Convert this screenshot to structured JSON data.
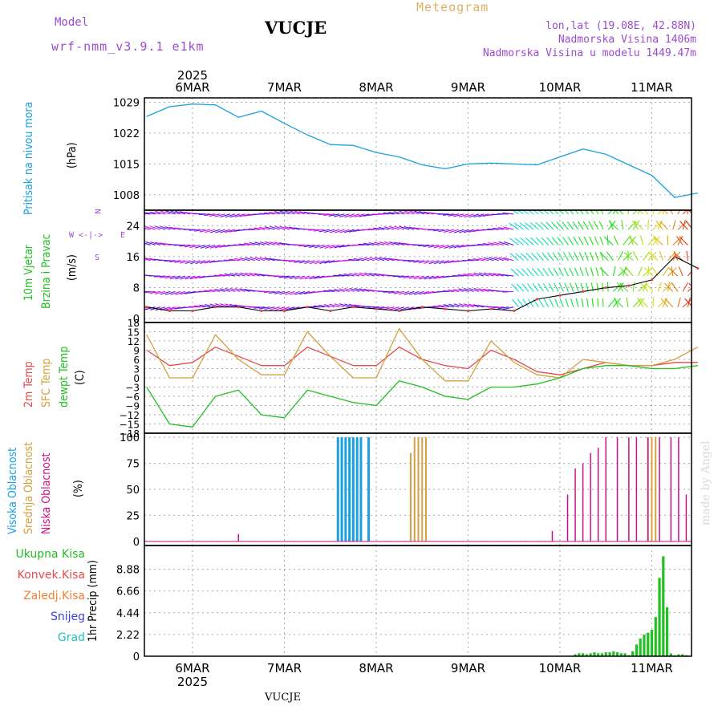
{
  "header": {
    "model_label": "Model",
    "model_name": "wrf-nmm_v3.9.1 e1km",
    "station": "VUCJE",
    "product": "Meteogram",
    "lonlat": "lon,lat (19.08E, 42.88N)",
    "altitude": "Nadmorska Visina 1406m",
    "model_altitude": "Nadmorska Visina u modelu 1449.47m",
    "footer_station": "VUCJE",
    "watermark": "made by Angel"
  },
  "colors": {
    "pressure": "#1aa0e0",
    "temp2m": "#e84a4a",
    "sfc": "#d4a040",
    "dewpt": "#22c022",
    "high_cloud": "#1aa0e0",
    "mid_cloud": "#d4a040",
    "low_cloud": "#cc1188",
    "total_precip": "#22c022",
    "conv_precip": "#e84a4a",
    "frz_rain": "#f08030",
    "snow": "#4040e0",
    "hail": "#20c0c0",
    "model_label": "#9b4ccf",
    "product": "#e0b060"
  },
  "x_axis": {
    "year": "2025",
    "days": [
      "6MAR",
      "7MAR",
      "8MAR",
      "9MAR",
      "10MAR",
      "11MAR"
    ]
  },
  "chart_data": [
    {
      "type": "line",
      "panel": "pressure",
      "side_label": "Pritisak na nivou mora",
      "unit": "(hPa)",
      "ylim": [
        1004.5,
        1030
      ],
      "yticks": [
        1008,
        1015,
        1022,
        1029
      ],
      "x_hours": [
        0,
        6,
        12,
        18,
        24,
        30,
        36,
        42,
        48,
        54,
        60,
        66,
        72,
        78,
        84,
        90,
        96,
        102,
        108,
        114,
        120,
        126,
        132,
        138,
        144
      ],
      "values": [
        1025.8,
        1028,
        1028.6,
        1028.4,
        1025.6,
        1027,
        1024.2,
        1021.6,
        1019.4,
        1019.2,
        1017.6,
        1016.6,
        1014.8,
        1013.9,
        1015,
        1015.2,
        1015,
        1014.8,
        1016.6,
        1018.4,
        1017.2,
        1014.8,
        1012.4,
        1007.4,
        1008.4
      ]
    },
    {
      "type": "line",
      "panel": "wind",
      "side_label_1": "10m Vjetar",
      "side_label_2": "Brzina i Pravac",
      "unit": "(m/s)",
      "ylim": [
        -1,
        28
      ],
      "yticks": [
        0,
        8,
        16,
        24
      ],
      "x_hours": [
        0,
        6,
        12,
        18,
        24,
        30,
        36,
        42,
        48,
        54,
        60,
        66,
        72,
        78,
        84,
        90,
        96,
        102,
        108,
        114,
        120,
        126,
        132,
        138,
        144
      ],
      "values": [
        3,
        2,
        2,
        3,
        3,
        2,
        2,
        3,
        2,
        3,
        2.5,
        2,
        3,
        2.5,
        2,
        2.5,
        2,
        5,
        6,
        7,
        8,
        8.5,
        10,
        16,
        13
      ],
      "compass": {
        "n": "N",
        "w": "W",
        "e": "E",
        "s": "S"
      }
    },
    {
      "type": "line",
      "panel": "temperature",
      "side_label_1": "2m Temp",
      "side_label_2": "SFC Temp",
      "side_label_3": "dewpt Temp",
      "unit": "(C)",
      "ylim": [
        -18,
        18
      ],
      "yticks": [
        -18,
        -15,
        -12,
        -9,
        -6,
        -3,
        0,
        3,
        6,
        9,
        12,
        15,
        18
      ],
      "x_hours": [
        0,
        6,
        12,
        18,
        24,
        30,
        36,
        42,
        48,
        54,
        60,
        66,
        72,
        78,
        84,
        90,
        96,
        102,
        108,
        114,
        120,
        126,
        132,
        138,
        144
      ],
      "series": [
        {
          "name": "2m Temp",
          "values": [
            9,
            4,
            5,
            10,
            7,
            4,
            4,
            10,
            7,
            4,
            4,
            10,
            6,
            4,
            3,
            9,
            6,
            2,
            1,
            3,
            5,
            4,
            4,
            5,
            5
          ]
        },
        {
          "name": "SFC Temp",
          "values": [
            14,
            0,
            0,
            14,
            6,
            1,
            1,
            15,
            7,
            0,
            0,
            16,
            6,
            -1,
            -1,
            12,
            5,
            1,
            0,
            6,
            5,
            4,
            4,
            6,
            10
          ]
        },
        {
          "name": "dewpt Temp",
          "values": [
            -3,
            -15,
            -16,
            -6,
            -4,
            -12,
            -13,
            -4,
            -6,
            -8,
            -9,
            -1,
            -3,
            -6,
            -7,
            -3,
            -3,
            -2,
            0,
            3,
            4,
            4,
            3,
            3,
            4
          ]
        }
      ]
    },
    {
      "type": "bar",
      "panel": "cloud",
      "side_label_1": "Visoka Oblacnost",
      "side_label_2": "Srednja Oblacnost",
      "side_label_3": "Niska Oblacnost",
      "unit": "(%)",
      "ylim": [
        -4,
        104
      ],
      "yticks": [
        0,
        25,
        50,
        75,
        100
      ],
      "series": [
        {
          "name": "Visoka Oblacnost",
          "x_hours": [
            50,
            51,
            52,
            53,
            54,
            55,
            56,
            58
          ],
          "values": [
            100,
            100,
            100,
            100,
            100,
            100,
            100,
            100
          ]
        },
        {
          "name": "Srednja Oblacnost",
          "x_hours": [
            69,
            70,
            71,
            72,
            73,
            131,
            132,
            133
          ],
          "values": [
            85,
            100,
            100,
            100,
            100,
            100,
            100,
            100
          ]
        },
        {
          "name": "Niska Oblacnost",
          "x_hours": [
            24,
            106,
            110,
            112,
            114,
            116,
            118,
            120,
            123,
            126,
            128,
            131,
            134,
            137,
            139,
            141
          ],
          "values": [
            7,
            10,
            45,
            70,
            75,
            85,
            90,
            100,
            100,
            100,
            100,
            100,
            100,
            100,
            100,
            45
          ]
        }
      ]
    },
    {
      "type": "bar",
      "panel": "precipitation",
      "unit": "1hr Precip (mm)",
      "ylim": [
        0,
        11.3
      ],
      "yticks": [
        0,
        2.22,
        4.44,
        6.66,
        8.88
      ],
      "legend": [
        "Ukupna Kisa",
        "Konvek.Kisa",
        "Zaledj.Kisa",
        "Snijeg",
        "Grad"
      ],
      "x_hours": [
        112,
        113,
        114,
        115,
        116,
        117,
        118,
        119,
        120,
        121,
        122,
        123,
        124,
        125,
        126,
        127,
        128,
        129,
        130,
        131,
        132,
        133,
        134,
        135,
        136,
        137,
        138,
        139,
        140,
        141
      ],
      "values": [
        0.2,
        0.3,
        0.3,
        0.2,
        0.3,
        0.4,
        0.3,
        0.3,
        0.4,
        0.4,
        0.5,
        0.4,
        0.3,
        0.3,
        0.1,
        0.5,
        1.2,
        1.8,
        2.2,
        2.4,
        2.7,
        4.0,
        8.0,
        10.2,
        5.0,
        0.3,
        0.1,
        0.2,
        0.2,
        0.1
      ]
    }
  ]
}
